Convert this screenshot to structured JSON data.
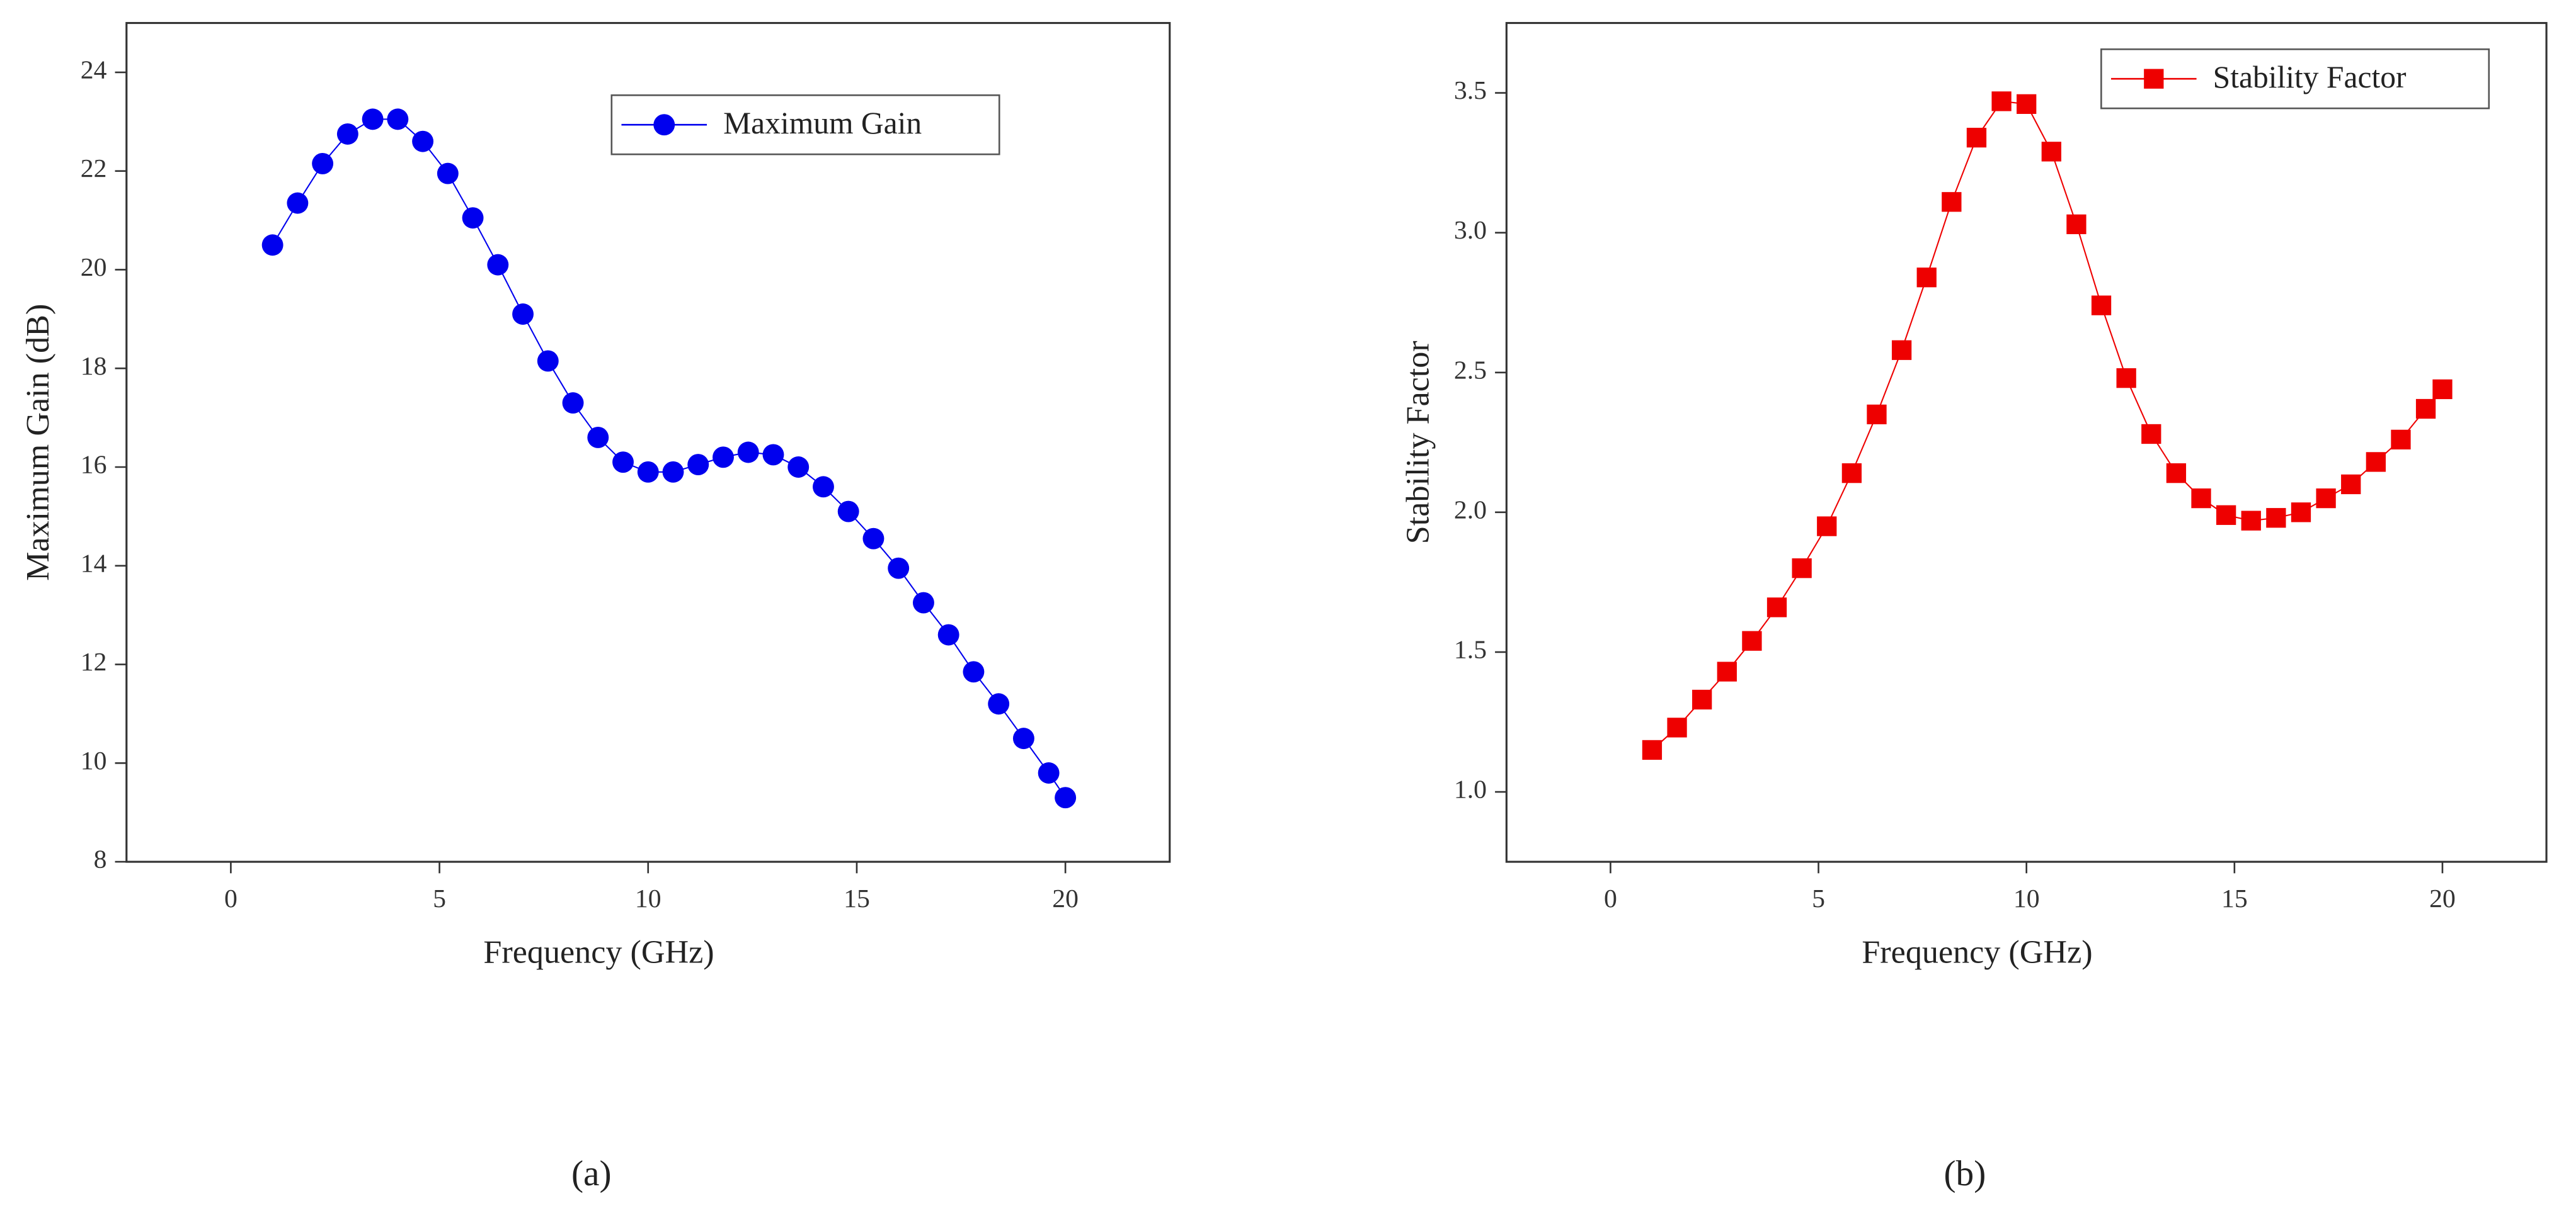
{
  "chart_data": [
    {
      "type": "line",
      "marker": "circle",
      "label": "(a)",
      "xlabel": "Frequency (GHz)",
      "ylabel": "Maximum Gain (dB)",
      "x": [
        1,
        1.6,
        2.2,
        2.8,
        3.4,
        4.0,
        4.6,
        5.2,
        5.8,
        6.4,
        7.0,
        7.6,
        8.2,
        8.8,
        9.4,
        10.0,
        10.6,
        11.2,
        11.8,
        12.4,
        13.0,
        13.6,
        14.2,
        14.8,
        15.4,
        16.0,
        16.6,
        17.2,
        17.8,
        18.4,
        19.0,
        19.6,
        20
      ],
      "series": [
        {
          "name": "Maximum Gain",
          "color": "#0000ee",
          "values": [
            20.5,
            21.35,
            22.15,
            22.75,
            23.05,
            23.05,
            22.6,
            21.95,
            21.05,
            20.1,
            19.1,
            18.15,
            17.3,
            16.6,
            16.1,
            15.9,
            15.9,
            16.05,
            16.2,
            16.3,
            16.25,
            16.0,
            15.6,
            15.1,
            14.55,
            13.95,
            13.25,
            12.6,
            11.85,
            11.2,
            10.5,
            9.8,
            9.3
          ]
        }
      ],
      "xlim": [
        -2.5,
        22.5
      ],
      "xticks": [
        0,
        5,
        10,
        15,
        20
      ],
      "ylim": [
        8,
        25
      ],
      "yticks": [
        8,
        10,
        12,
        14,
        16,
        18,
        20,
        22,
        24
      ],
      "legend": "upper center"
    },
    {
      "type": "line",
      "marker": "square",
      "label": "(b)",
      "xlabel": "Frequency (GHz)",
      "ylabel": "Stability Factor",
      "x": [
        1,
        1.6,
        2.2,
        2.8,
        3.4,
        4.0,
        4.6,
        5.2,
        5.8,
        6.4,
        7.0,
        7.6,
        8.2,
        8.8,
        9.4,
        10.0,
        10.6,
        11.2,
        11.8,
        12.4,
        13.0,
        13.6,
        14.2,
        14.8,
        15.4,
        16.0,
        16.6,
        17.2,
        17.8,
        18.4,
        19.0,
        19.6,
        20
      ],
      "series": [
        {
          "name": "Stability Factor",
          "color": "#ee0000",
          "values": [
            1.15,
            1.23,
            1.33,
            1.43,
            1.54,
            1.66,
            1.8,
            1.95,
            2.14,
            2.35,
            2.58,
            2.84,
            3.11,
            3.34,
            3.47,
            3.46,
            3.29,
            3.03,
            2.74,
            2.48,
            2.28,
            2.14,
            2.05,
            1.99,
            1.97,
            1.98,
            2.0,
            2.05,
            2.1,
            2.18,
            2.26,
            2.37,
            2.44
          ]
        }
      ],
      "xlim": [
        -2.5,
        22.5
      ],
      "xticks": [
        0,
        5,
        10,
        15,
        20
      ],
      "ylim": [
        0.75,
        3.75
      ],
      "yticks": [
        {
          "value": 1,
          "label": "1.0"
        },
        1.5,
        {
          "value": 2,
          "label": "2.0"
        },
        2.5,
        {
          "value": 3,
          "label": "3.0"
        },
        3.5
      ],
      "legend": "upper right"
    }
  ]
}
